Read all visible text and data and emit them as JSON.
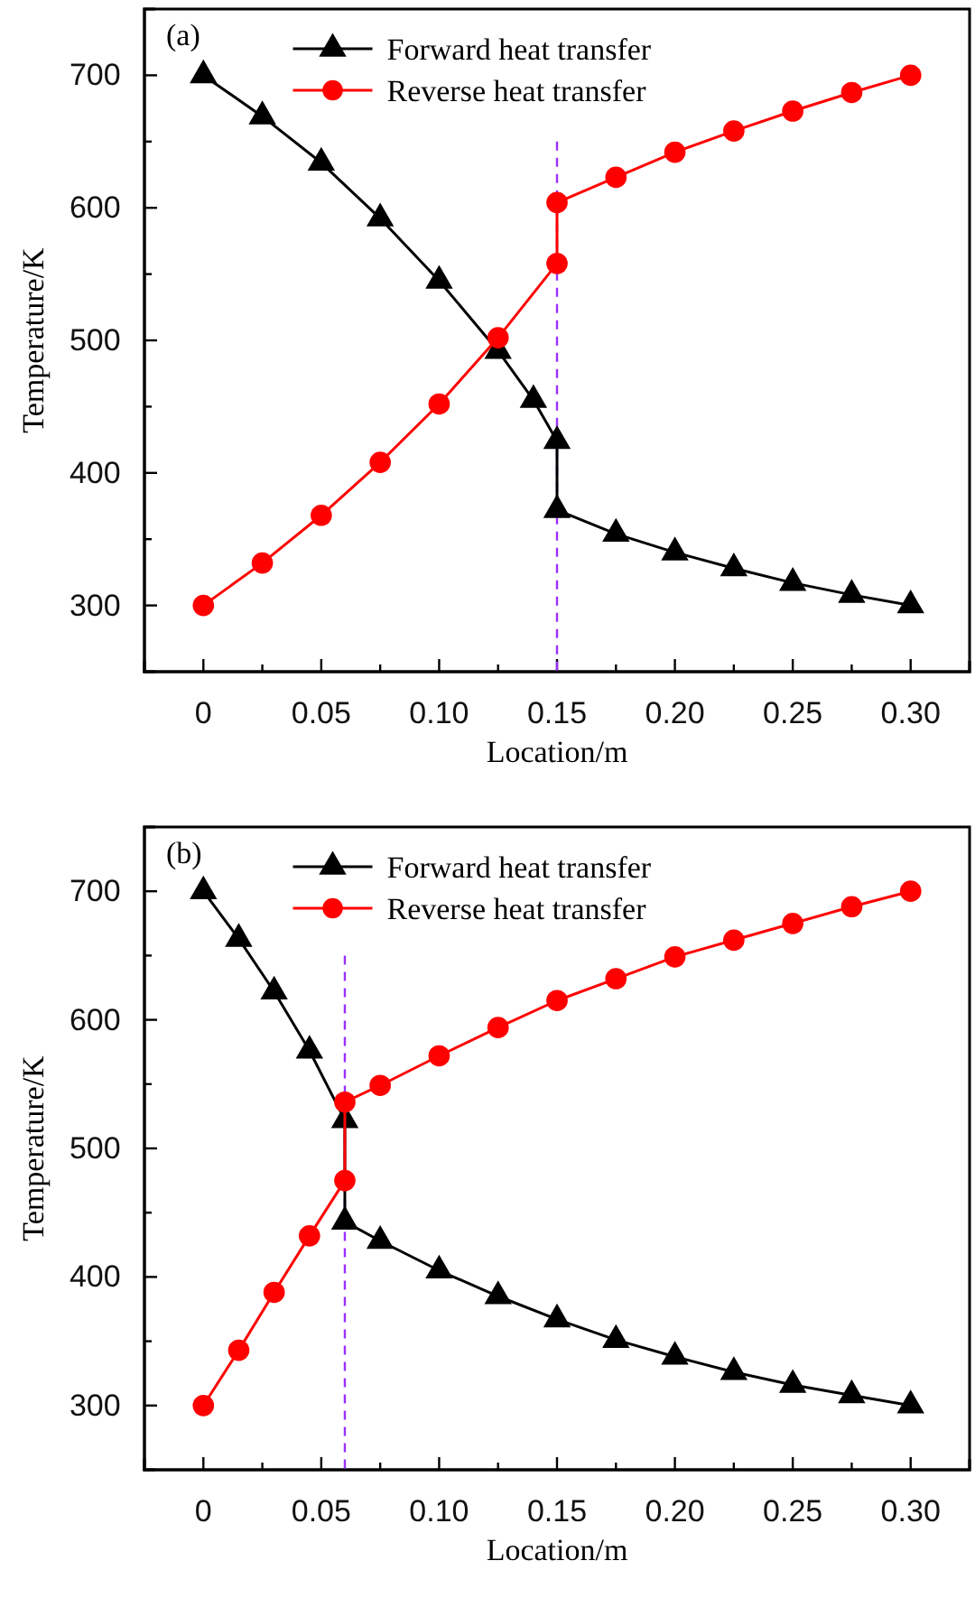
{
  "chart_data": [
    {
      "type": "line",
      "xlabel": "Location/m",
      "ylabel": "Temperature/K",
      "annotations": [
        "(a)"
      ],
      "legend": "top",
      "xlim": [
        -0.025,
        0.325
      ],
      "ylim": [
        250,
        750
      ],
      "xticks": [
        0,
        {
          "value": 0.025,
          "label": null
        },
        {
          "value": 0.05,
          "label": "0.05"
        },
        {
          "value": 0.075,
          "label": null
        },
        {
          "value": 0.1,
          "label": "0.10"
        },
        {
          "value": 0.125,
          "label": null
        },
        {
          "value": 0.15,
          "label": "0.15"
        },
        {
          "value": 0.175,
          "label": null
        },
        {
          "value": 0.2,
          "label": "0.20"
        },
        {
          "value": 0.225,
          "label": null
        },
        {
          "value": 0.25,
          "label": "0.25"
        },
        {
          "value": 0.275,
          "label": null
        },
        {
          "value": 0.3,
          "label": "0.30"
        }
      ],
      "yticks": [
        300,
        {
          "value": 350,
          "label": null
        },
        400,
        {
          "value": 450,
          "label": null
        },
        500,
        {
          "value": 550,
          "label": null
        },
        600,
        {
          "value": 650,
          "label": null
        },
        700
      ],
      "ref_lines": [
        {
          "axis": "x",
          "value": 0.15,
          "color": "#9b30ff",
          "line_style": "dashed"
        }
      ],
      "series": [
        {
          "name": "Forward heat transfer",
          "color": "#000000",
          "marker": "triangle",
          "x": [
            0,
            0.025,
            0.05,
            0.075,
            0.1,
            0.125,
            0.14,
            0.15,
            0.15,
            0.175,
            0.2,
            0.225,
            0.25,
            0.275,
            0.3
          ],
          "values": [
            700,
            669,
            634,
            592,
            545,
            492,
            455,
            424,
            372,
            354,
            340,
            328,
            317,
            308,
            300
          ]
        },
        {
          "name": "Reverse heat transfer",
          "color": "#ff0000",
          "marker": "circle",
          "x": [
            0,
            0.025,
            0.05,
            0.075,
            0.1,
            0.125,
            0.15,
            0.15,
            0.175,
            0.2,
            0.225,
            0.25,
            0.275,
            0.3
          ],
          "values": [
            300,
            332,
            368,
            408,
            452,
            502,
            558,
            604,
            623,
            642,
            658,
            673,
            687,
            700
          ]
        }
      ]
    },
    {
      "type": "line",
      "xlabel": "Location/m",
      "ylabel": "Temperature/K",
      "annotations": [
        "(b)"
      ],
      "legend": "top",
      "xlim": [
        -0.025,
        0.325
      ],
      "ylim": [
        250,
        750
      ],
      "xticks": [
        0,
        {
          "value": 0.025,
          "label": null
        },
        {
          "value": 0.05,
          "label": "0.05"
        },
        {
          "value": 0.075,
          "label": null
        },
        {
          "value": 0.1,
          "label": "0.10"
        },
        {
          "value": 0.125,
          "label": null
        },
        {
          "value": 0.15,
          "label": "0.15"
        },
        {
          "value": 0.175,
          "label": null
        },
        {
          "value": 0.2,
          "label": "0.20"
        },
        {
          "value": 0.225,
          "label": null
        },
        {
          "value": 0.25,
          "label": "0.25"
        },
        {
          "value": 0.275,
          "label": null
        },
        {
          "value": 0.3,
          "label": "0.30"
        }
      ],
      "yticks": [
        300,
        {
          "value": 350,
          "label": null
        },
        400,
        {
          "value": 450,
          "label": null
        },
        500,
        {
          "value": 550,
          "label": null
        },
        600,
        {
          "value": 650,
          "label": null
        },
        700
      ],
      "ref_lines": [
        {
          "axis": "x",
          "value": 0.06,
          "color": "#9b30ff",
          "line_style": "dashed"
        }
      ],
      "series": [
        {
          "name": "Forward heat transfer",
          "color": "#000000",
          "marker": "triangle",
          "x": [
            0,
            0.015,
            0.03,
            0.045,
            0.06,
            0.06,
            0.075,
            0.1,
            0.125,
            0.15,
            0.175,
            0.2,
            0.225,
            0.25,
            0.275,
            0.3
          ],
          "values": [
            700,
            663,
            622,
            576,
            522,
            443,
            428,
            405,
            385,
            367,
            351,
            338,
            326,
            316,
            308,
            300
          ]
        },
        {
          "name": "Reverse heat transfer",
          "color": "#ff0000",
          "marker": "circle",
          "x": [
            0,
            0.015,
            0.03,
            0.045,
            0.06,
            0.06,
            0.075,
            0.1,
            0.125,
            0.15,
            0.175,
            0.2,
            0.225,
            0.25,
            0.275,
            0.3
          ],
          "values": [
            300,
            343,
            388,
            432,
            475,
            536,
            549,
            572,
            594,
            615,
            632,
            649,
            662,
            675,
            688,
            700
          ]
        }
      ]
    }
  ]
}
